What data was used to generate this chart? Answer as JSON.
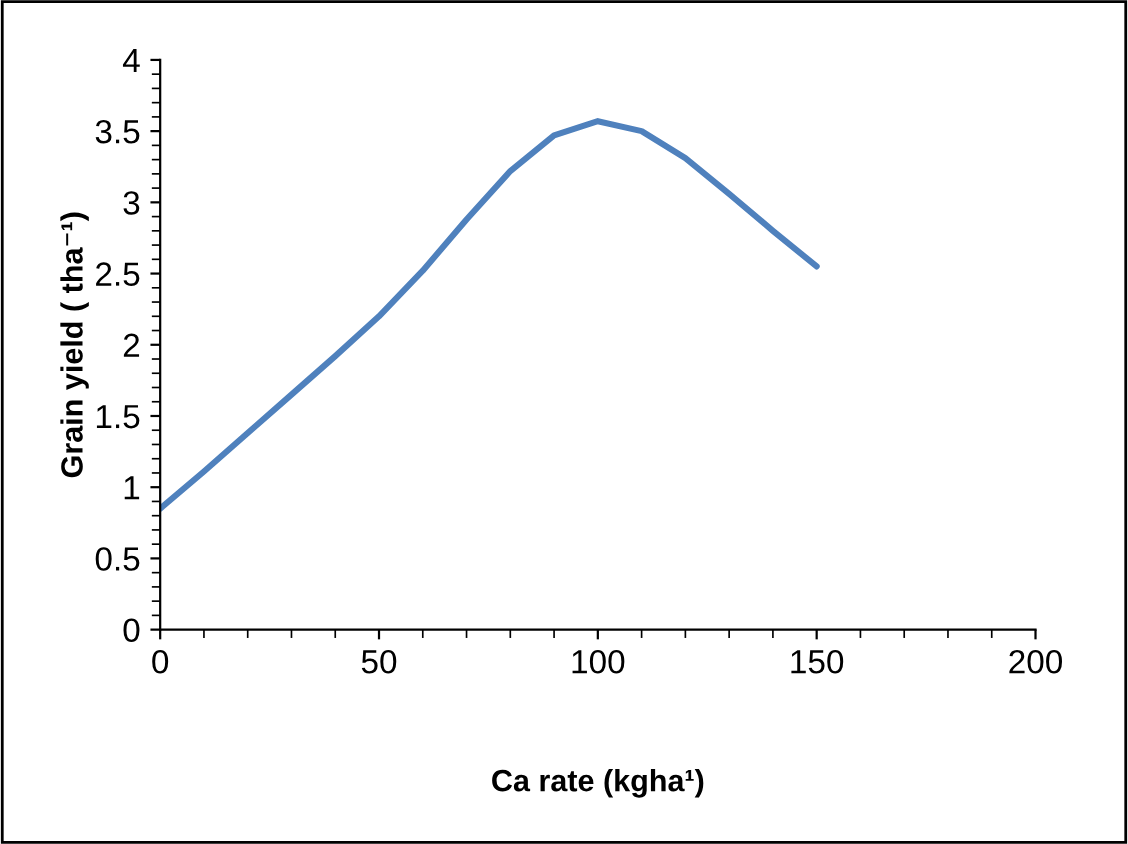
{
  "chart_data": {
    "type": "line",
    "xlabel": "Ca rate (kgha¹)",
    "ylabel": "Grain yield ( tha⁻¹)",
    "x": [
      0,
      10,
      20,
      30,
      40,
      50,
      60,
      70,
      80,
      90,
      100,
      110,
      120,
      130,
      140,
      150
    ],
    "series": [
      {
        "color": "#4f81bd",
        "values": [
          0.85,
          1.11,
          1.38,
          1.65,
          1.92,
          2.2,
          2.52,
          2.88,
          3.22,
          3.47,
          3.57,
          3.5,
          3.31,
          3.06,
          2.8,
          2.55
        ]
      }
    ],
    "xlim": [
      0,
      200
    ],
    "xticks": [
      0,
      50,
      100,
      150,
      200
    ],
    "ylim": [
      0,
      4
    ],
    "yticks": [
      0,
      0.5,
      1,
      1.5,
      2,
      2.5,
      3,
      3.5,
      4
    ],
    "grid": false,
    "legend": false,
    "marker": "none",
    "line_style": "solid"
  }
}
